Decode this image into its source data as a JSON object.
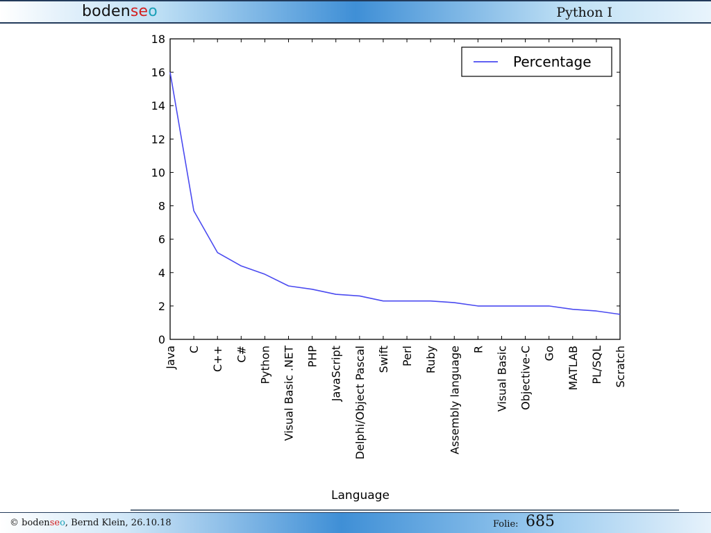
{
  "header": {
    "logo": {
      "part1": "boden",
      "part2": "se",
      "part3": "o"
    },
    "title": "Python I"
  },
  "footer": {
    "copyright_prefix": "© ",
    "logo": {
      "part1": "boden",
      "part2": "se",
      "part3": "o"
    },
    "copyright_suffix": ", Bernd Klein, 26.10.18",
    "folie_label": "Folie:",
    "folie_number": "685"
  },
  "colors": {
    "line": "#4a4af0",
    "brand_red": "#d21f1f",
    "brand_teal": "#1aa0b8"
  },
  "chart_data": {
    "type": "line",
    "categories": [
      "Java",
      "C",
      "C++",
      "C#",
      "Python",
      "Visual Basic .NET",
      "PHP",
      "JavaScript",
      "Delphi/Object Pascal",
      "Swift",
      "Perl",
      "Ruby",
      "Assembly language",
      "R",
      "Visual Basic",
      "Objective-C",
      "Go",
      "MATLAB",
      "PL/SQL",
      "Scratch"
    ],
    "series": [
      {
        "name": "Percentage",
        "values": [
          16.0,
          7.7,
          5.2,
          4.4,
          3.9,
          3.2,
          3.0,
          2.7,
          2.6,
          2.3,
          2.3,
          2.3,
          2.2,
          2.0,
          2.0,
          2.0,
          2.0,
          1.8,
          1.7,
          1.5
        ]
      }
    ],
    "xlabel": "Language",
    "ylabel": "",
    "ylim": [
      0,
      18
    ],
    "yticks": [
      0,
      2,
      4,
      6,
      8,
      10,
      12,
      14,
      16,
      18
    ],
    "legend_position": "top-right",
    "grid": false
  }
}
